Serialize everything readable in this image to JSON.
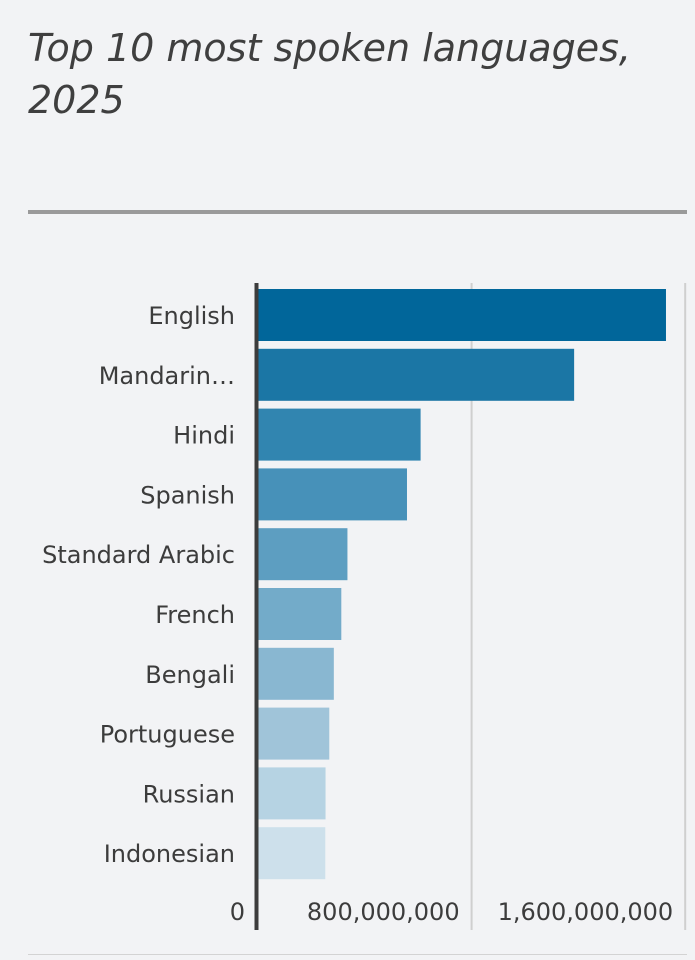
{
  "chart_data": {
    "type": "bar",
    "orientation": "horizontal",
    "title": "Top 10 most spoken languages, 2025",
    "categories": [
      "English",
      "Mandarin…",
      "Hindi",
      "Spanish",
      "Standard Arabic",
      "French",
      "Bengali",
      "Portuguese",
      "Russian",
      "Indonesian"
    ],
    "values": [
      1528000000,
      1184000000,
      609000000,
      558000000,
      335000000,
      312000000,
      284000000,
      267000000,
      253000000,
      252000000
    ],
    "xlim": [
      0,
      1600000000
    ],
    "xticks": [
      0,
      800000000,
      1600000000
    ],
    "xtick_labels": [
      "0",
      "800,000,000",
      "1,600,000,000"
    ],
    "xlabel": "",
    "ylabel": "",
    "grid": true,
    "colors": [
      "#01669a",
      "#1b76a5",
      "#3185b0",
      "#4791b9",
      "#5d9ec1",
      "#73abc9",
      "#89b7d1",
      "#a0c4d9",
      "#b6d3e3",
      "#cde0eb"
    ]
  }
}
